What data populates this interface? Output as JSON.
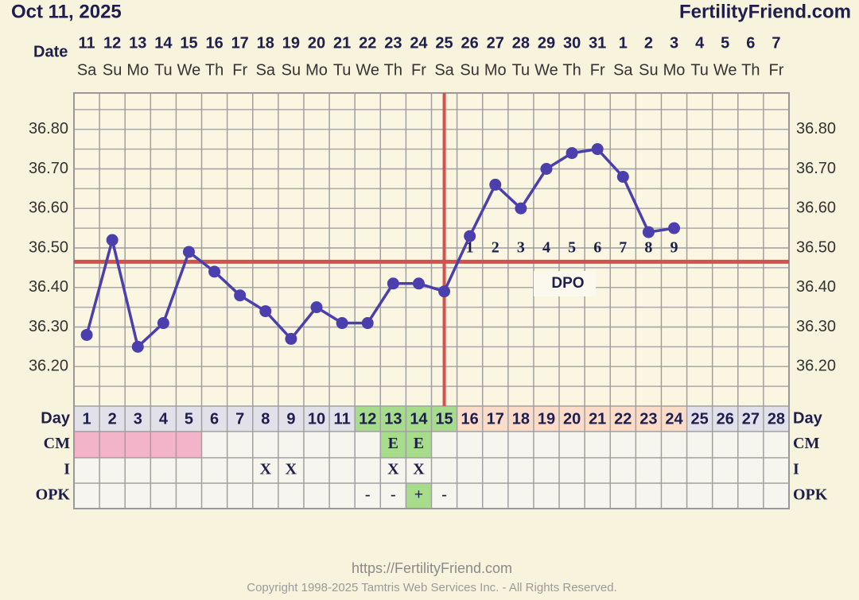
{
  "header": {
    "date": "Oct 11, 2025",
    "brand": "FertilityFriend.com"
  },
  "chart_data": {
    "type": "line",
    "row_labels": {
      "date": "Date",
      "day": "Day",
      "cm": "CM",
      "i": "I",
      "opk": "OPK"
    },
    "dates": [
      "11",
      "12",
      "13",
      "14",
      "15",
      "16",
      "17",
      "18",
      "19",
      "20",
      "21",
      "22",
      "23",
      "24",
      "25",
      "26",
      "27",
      "28",
      "29",
      "30",
      "31",
      "1",
      "2",
      "3",
      "4",
      "5",
      "6",
      "7"
    ],
    "weekdays": [
      "Sa",
      "Su",
      "Mo",
      "Tu",
      "We",
      "Th",
      "Fr",
      "Sa",
      "Su",
      "Mo",
      "Tu",
      "We",
      "Th",
      "Fr",
      "Sa",
      "Su",
      "Mo",
      "Tu",
      "We",
      "Th",
      "Fr",
      "Sa",
      "Su",
      "Mo",
      "Tu",
      "We",
      "Th",
      "Fr"
    ],
    "days": [
      1,
      2,
      3,
      4,
      5,
      6,
      7,
      8,
      9,
      10,
      11,
      12,
      13,
      14,
      15,
      16,
      17,
      18,
      19,
      20,
      21,
      22,
      23,
      24,
      25,
      26,
      27,
      28
    ],
    "day_fill": [
      "#e2e1ea",
      "#e2e1ea",
      "#e2e1ea",
      "#e2e1ea",
      "#e2e1ea",
      "#e2e1ea",
      "#e2e1ea",
      "#e2e1ea",
      "#e2e1ea",
      "#e2e1ea",
      "#e2e1ea",
      "#a6dc8c",
      "#a6dc8c",
      "#a6dc8c",
      "#a6dc8c",
      "#fbdcc8",
      "#fbdcc8",
      "#fbdcc8",
      "#fbdcc8",
      "#fbdcc8",
      "#fbdcc8",
      "#fbdcc8",
      "#fbdcc8",
      "#fbdcc8",
      "#e2e1ea",
      "#e2e1ea",
      "#e2e1ea",
      "#e2e1ea"
    ],
    "values": [
      36.28,
      36.52,
      36.25,
      36.31,
      36.49,
      36.44,
      36.38,
      36.34,
      36.27,
      36.35,
      36.31,
      36.31,
      36.41,
      36.41,
      36.39,
      36.53,
      36.66,
      36.6,
      36.7,
      36.74,
      36.75,
      36.68,
      36.54,
      36.55,
      null,
      null,
      null,
      null
    ],
    "color": "#4b3fae",
    "ylim": [
      36.1,
      36.9
    ],
    "yticks": [
      {
        "value": 36.2,
        "label": "36.20"
      },
      {
        "value": 36.3,
        "label": "36.30"
      },
      {
        "value": 36.4,
        "label": "36.40"
      },
      {
        "value": 36.5,
        "label": "36.50"
      },
      {
        "value": 36.6,
        "label": "36.60"
      },
      {
        "value": 36.7,
        "label": "36.70"
      },
      {
        "value": 36.8,
        "label": "36.80"
      }
    ],
    "grid": true,
    "coverline": 36.465,
    "ovulation_day": 15,
    "marker_color": "#d4524d",
    "dpo": [
      null,
      null,
      null,
      null,
      null,
      null,
      null,
      null,
      null,
      null,
      null,
      null,
      null,
      null,
      null,
      1,
      2,
      3,
      4,
      5,
      6,
      7,
      8,
      9,
      null,
      null,
      null,
      null
    ],
    "dpo_label": "DPO",
    "cm": [
      null,
      null,
      null,
      null,
      null,
      null,
      null,
      null,
      null,
      null,
      null,
      null,
      "E",
      "E",
      null,
      null,
      null,
      null,
      null,
      null,
      null,
      null,
      null,
      null,
      null,
      null,
      null,
      null
    ],
    "cm_fill": [
      "#f3b3c8",
      "#f3b3c8",
      "#f3b3c8",
      "#f3b3c8",
      "#f3b3c8",
      null,
      null,
      null,
      null,
      null,
      null,
      null,
      "#a6dc8c",
      "#a6dc8c",
      null,
      null,
      null,
      null,
      null,
      null,
      null,
      null,
      null,
      null,
      null,
      null,
      null,
      null
    ],
    "intercourse": [
      null,
      null,
      null,
      null,
      null,
      null,
      null,
      "X",
      "X",
      null,
      null,
      null,
      "X",
      "X",
      null,
      null,
      null,
      null,
      null,
      null,
      null,
      null,
      null,
      null,
      null,
      null,
      null,
      null
    ],
    "opk": [
      null,
      null,
      null,
      null,
      null,
      null,
      null,
      null,
      null,
      null,
      null,
      "-",
      "-",
      "+",
      "-",
      null,
      null,
      null,
      null,
      null,
      null,
      null,
      null,
      null,
      null,
      null,
      null,
      null
    ],
    "opk_fill": [
      null,
      null,
      null,
      null,
      null,
      null,
      null,
      null,
      null,
      null,
      null,
      null,
      null,
      "#a6dc8c",
      null,
      null,
      null,
      null,
      null,
      null,
      null,
      null,
      null,
      null,
      null,
      null,
      null,
      null
    ]
  },
  "footer": {
    "url": "https://FertilityFriend.com",
    "copyright": "Copyright 1998-2025 Tamtris Web Services Inc. - All Rights Reserved."
  }
}
